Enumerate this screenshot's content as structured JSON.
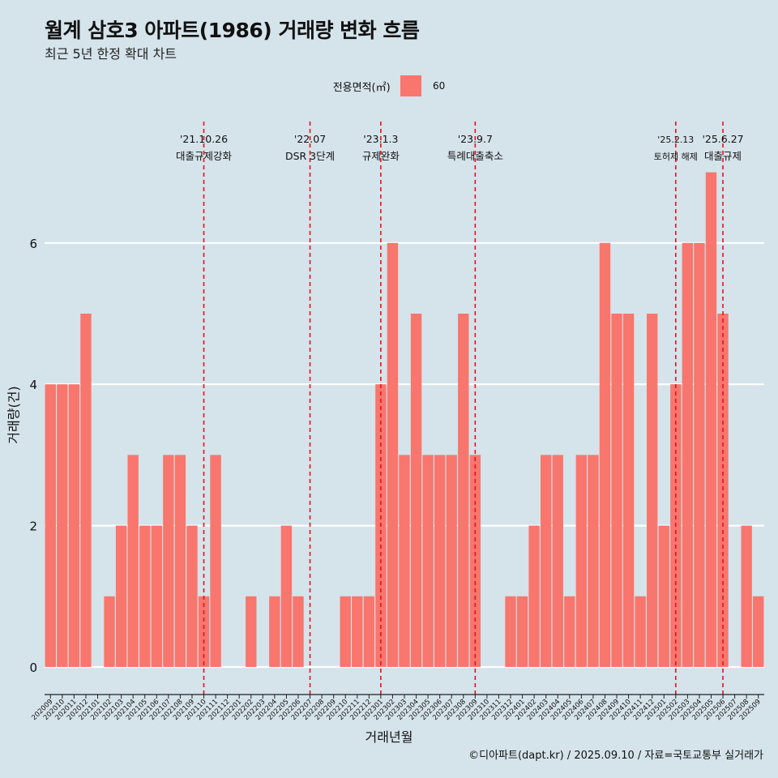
{
  "chart_data": {
    "type": "bar",
    "title": "월계 삼호3 아파트(1986) 거래량 변화 흐름",
    "subtitle": "최근 5년 한정 확대 차트",
    "xlabel": "거래년월",
    "ylabel": "거래량(건)",
    "legend": {
      "title": "전용면적(㎡)",
      "label": "60",
      "position": "top"
    },
    "caption": "©디아파트(dapt.kr) / 2025.09.10 / 자료=국토교통부 실거래가",
    "ylim": [
      0,
      7
    ],
    "yticks": [
      0,
      2,
      4,
      6
    ],
    "grid": true,
    "colors": {
      "bar": "#f8766d",
      "background": "#d5e3ea",
      "event_line": "#e8101a",
      "grid": "#ffffff"
    },
    "categories": [
      "202009",
      "202010",
      "202011",
      "202012",
      "202101",
      "202102",
      "202103",
      "202104",
      "202105",
      "202106",
      "202107",
      "202108",
      "202109",
      "202110",
      "202111",
      "202112",
      "202201",
      "202202",
      "202203",
      "202204",
      "202205",
      "202206",
      "202207",
      "202208",
      "202209",
      "202210",
      "202211",
      "202212",
      "202301",
      "202302",
      "202303",
      "202304",
      "202305",
      "202306",
      "202307",
      "202308",
      "202309",
      "202310",
      "202311",
      "202312",
      "202401",
      "202402",
      "202403",
      "202404",
      "202405",
      "202406",
      "202407",
      "202408",
      "202409",
      "202410",
      "202411",
      "202412",
      "202501",
      "202502",
      "202503",
      "202504",
      "202505",
      "202506",
      "202507",
      "202508",
      "202509"
    ],
    "values": [
      4,
      4,
      4,
      5,
      0,
      1,
      2,
      3,
      2,
      2,
      3,
      3,
      2,
      1,
      3,
      0,
      0,
      1,
      0,
      1,
      2,
      1,
      0,
      0,
      0,
      1,
      1,
      1,
      4,
      6,
      3,
      5,
      3,
      3,
      3,
      5,
      3,
      0,
      0,
      1,
      1,
      2,
      3,
      3,
      1,
      3,
      3,
      6,
      5,
      5,
      1,
      5,
      2,
      4,
      6,
      6,
      7,
      5,
      0,
      2,
      1
    ],
    "events": [
      {
        "date": "'21.10.26",
        "label": "대출규제강화",
        "at": "202110"
      },
      {
        "date": "'22.07",
        "label": "DSR 3단계",
        "at": "202207"
      },
      {
        "date": "'23.1.3",
        "label": "규제완화",
        "at": "202301"
      },
      {
        "date": "'23.9.7",
        "label": "특례대출축소",
        "at": "202309"
      },
      {
        "date": "'25.2.13",
        "label": "토허제 해제",
        "at": "202502"
      },
      {
        "date": "'25.6.27",
        "label": "대출규제",
        "at": "202506"
      }
    ]
  }
}
